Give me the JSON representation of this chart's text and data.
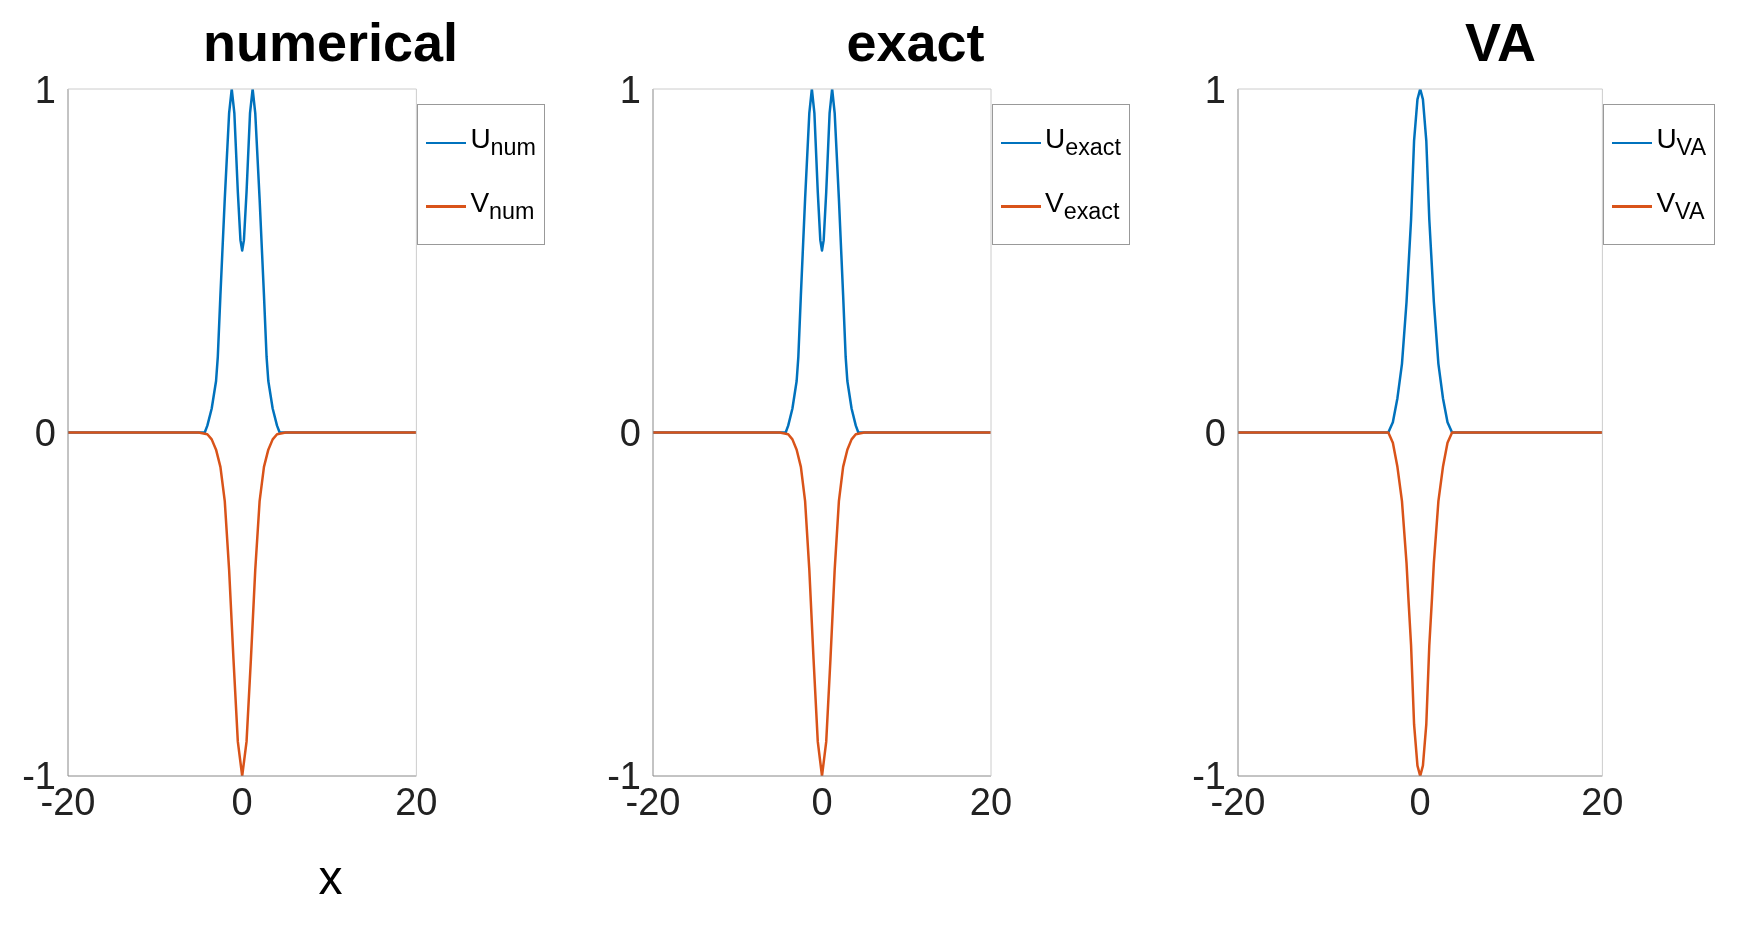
{
  "chart_data": [
    {
      "type": "line",
      "title": "numerical",
      "xlabel": "x",
      "xlim": [
        -20,
        20
      ],
      "xticks": [
        -20,
        0,
        20
      ],
      "ylim": [
        -1,
        1
      ],
      "yticks": [
        -1,
        0,
        1
      ],
      "legend": "top right",
      "grid": false,
      "series": [
        {
          "name": "U$_{num}$",
          "color": "#0072bd",
          "x": [
            -20,
            -5,
            -4.3,
            -4,
            -3.5,
            -3,
            -2.8,
            -2.5,
            -2,
            -1.5,
            -1.2,
            -0.9,
            -0.5,
            -0.2,
            0,
            0.2,
            0.5,
            0.9,
            1.2,
            1.5,
            2,
            2.5,
            2.8,
            3,
            3.5,
            4,
            4.3,
            5,
            20
          ],
          "values": [
            0,
            0,
            0,
            0.02,
            0.07,
            0.15,
            0.22,
            0.4,
            0.68,
            0.93,
            1,
            0.93,
            0.7,
            0.56,
            0.53,
            0.56,
            0.7,
            0.93,
            1,
            0.93,
            0.68,
            0.4,
            0.22,
            0.15,
            0.07,
            0.02,
            0,
            0,
            0
          ]
        },
        {
          "name": "V$_{num}$",
          "color": "#d95319",
          "x": [
            -20,
            -5,
            -4,
            -3.5,
            -3,
            -2.5,
            -2,
            -1.5,
            -1,
            -0.5,
            0,
            0.5,
            1,
            1.5,
            2,
            2.5,
            3,
            3.5,
            4,
            5,
            20
          ],
          "values": [
            0,
            0,
            -0.005,
            -0.02,
            -0.05,
            -0.1,
            -0.2,
            -0.4,
            -0.66,
            -0.9,
            -1,
            -0.9,
            -0.66,
            -0.4,
            -0.2,
            -0.1,
            -0.05,
            -0.02,
            -0.005,
            0,
            0
          ]
        }
      ]
    },
    {
      "type": "line",
      "title": "exact",
      "xlim": [
        -20,
        20
      ],
      "xticks": [
        -20,
        0,
        20
      ],
      "ylim": [
        -1,
        1
      ],
      "yticks": [
        -1,
        0,
        1
      ],
      "legend": "top right",
      "grid": false,
      "series": [
        {
          "name": "U$_{exact}$",
          "color": "#0072bd",
          "x": [
            -20,
            -5,
            -4.3,
            -4,
            -3.5,
            -3,
            -2.8,
            -2.5,
            -2,
            -1.5,
            -1.2,
            -0.9,
            -0.5,
            -0.2,
            0,
            0.2,
            0.5,
            0.9,
            1.2,
            1.5,
            2,
            2.5,
            2.8,
            3,
            3.5,
            4,
            4.3,
            5,
            20
          ],
          "values": [
            0,
            0,
            0,
            0.02,
            0.07,
            0.15,
            0.22,
            0.4,
            0.68,
            0.93,
            1,
            0.93,
            0.7,
            0.56,
            0.53,
            0.56,
            0.7,
            0.93,
            1,
            0.93,
            0.68,
            0.4,
            0.22,
            0.15,
            0.07,
            0.02,
            0,
            0,
            0
          ]
        },
        {
          "name": "V$_{exact}$",
          "color": "#d95319",
          "x": [
            -20,
            -5,
            -4,
            -3.5,
            -3,
            -2.5,
            -2,
            -1.5,
            -1,
            -0.5,
            0,
            0.5,
            1,
            1.5,
            2,
            2.5,
            3,
            3.5,
            4,
            5,
            20
          ],
          "values": [
            0,
            0,
            -0.005,
            -0.02,
            -0.05,
            -0.1,
            -0.2,
            -0.4,
            -0.66,
            -0.9,
            -1,
            -0.9,
            -0.66,
            -0.4,
            -0.2,
            -0.1,
            -0.05,
            -0.02,
            -0.005,
            0,
            0
          ]
        }
      ]
    },
    {
      "type": "line",
      "title": "VA",
      "xlim": [
        -20,
        20
      ],
      "xticks": [
        -20,
        0,
        20
      ],
      "ylim": [
        -1,
        1
      ],
      "yticks": [
        -1,
        0,
        1
      ],
      "legend": "top right",
      "grid": false,
      "series": [
        {
          "name": "U$_{VA}$",
          "color": "#0072bd",
          "x": [
            -20,
            -3.5,
            -3,
            -2.5,
            -2,
            -1.5,
            -1,
            -0.67,
            -0.3,
            0,
            0.3,
            0.67,
            1,
            1.5,
            2,
            2.5,
            3,
            3.5,
            20
          ],
          "values": [
            0,
            0,
            0.03,
            0.1,
            0.2,
            0.38,
            0.62,
            0.85,
            0.97,
            1,
            0.97,
            0.85,
            0.62,
            0.38,
            0.2,
            0.1,
            0.03,
            0,
            0
          ]
        },
        {
          "name": "V$_{VA}$",
          "color": "#d95319",
          "x": [
            -20,
            -3.5,
            -3,
            -2.5,
            -2,
            -1.5,
            -1.3,
            -1,
            -0.67,
            -0.3,
            0,
            0.3,
            0.67,
            1,
            1.3,
            1.5,
            2,
            2.5,
            3,
            3.5,
            20
          ],
          "values": [
            0,
            0,
            -0.03,
            -0.1,
            -0.2,
            -0.38,
            -0.48,
            -0.62,
            -0.85,
            -0.97,
            -1,
            -0.97,
            -0.85,
            -0.62,
            -0.48,
            -0.38,
            -0.2,
            -0.1,
            -0.03,
            0,
            0
          ]
        }
      ]
    }
  ]
}
